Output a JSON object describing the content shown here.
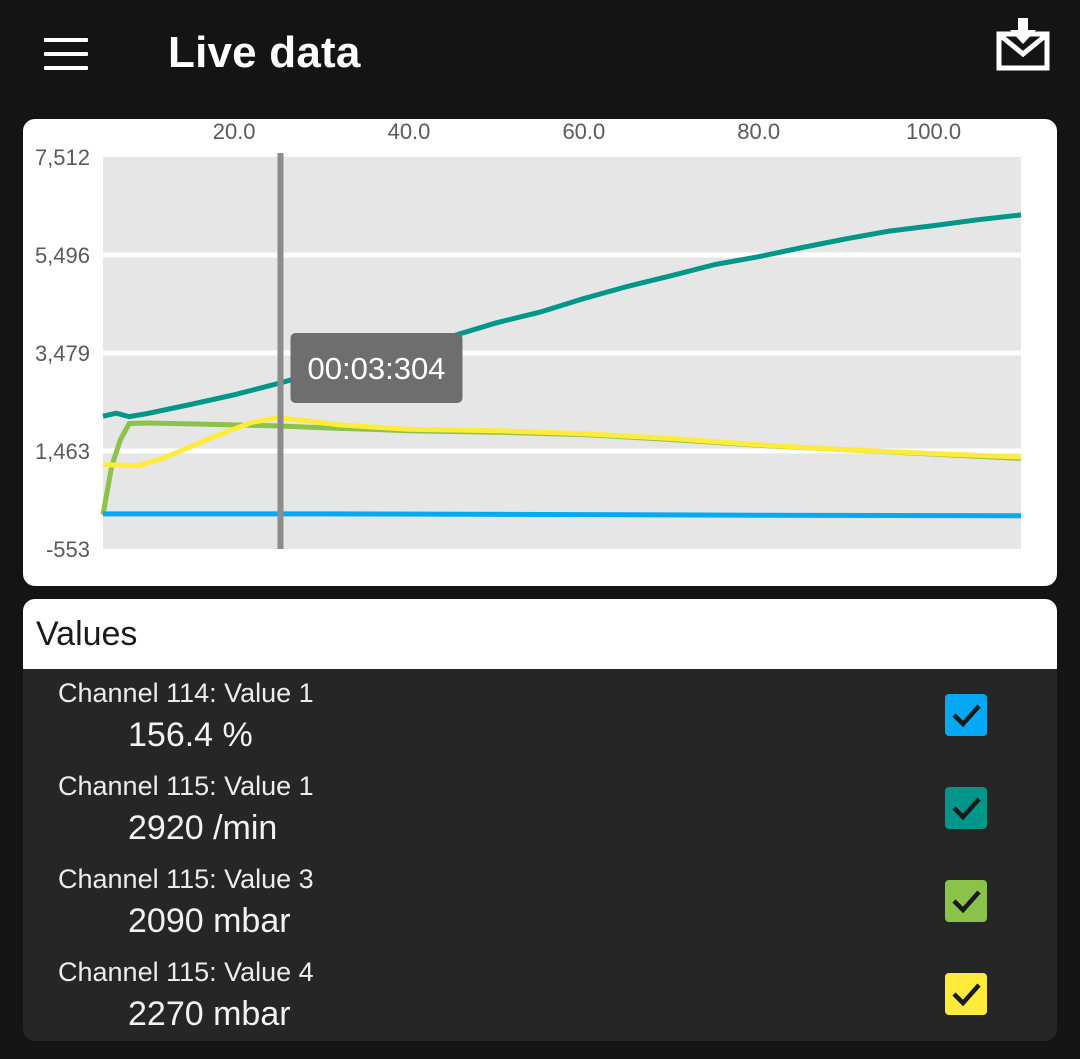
{
  "header": {
    "title": "Live data",
    "menu_icon": "hamburger-menu-icon",
    "export_icon": "download-mail-icon"
  },
  "tooltip": {
    "label": "00:03:304"
  },
  "chart_data": {
    "type": "line",
    "x_ticks": [
      "20.0",
      "40.0",
      "60.0",
      "80.0",
      "100.0"
    ],
    "y_ticks": [
      "7,512",
      "5,496",
      "3,479",
      "1,463",
      "-553"
    ],
    "xlim": [
      5,
      110
    ],
    "ylim": [
      -553,
      7512
    ],
    "cursor_x": 25.3,
    "grid": true,
    "series": [
      {
        "color": "#00968a",
        "x": [
          5,
          6.5,
          8,
          10,
          15,
          20,
          25,
          30,
          35,
          40,
          45,
          50,
          55,
          60,
          65,
          70,
          75,
          80,
          85,
          90,
          95,
          100,
          105,
          110
        ],
        "values": [
          2180,
          2240,
          2170,
          2230,
          2420,
          2620,
          2850,
          3100,
          3330,
          3570,
          3830,
          4100,
          4320,
          4600,
          4850,
          5070,
          5300,
          5460,
          5650,
          5830,
          5990,
          6100,
          6220,
          6320
        ]
      },
      {
        "color": "#8bc34a",
        "x": [
          5,
          6,
          7,
          8,
          10,
          15,
          20,
          25,
          30,
          40,
          50,
          60,
          70,
          80,
          90,
          100,
          110
        ],
        "values": [
          150,
          1150,
          1700,
          2030,
          2040,
          2020,
          2000,
          1980,
          1940,
          1880,
          1850,
          1800,
          1700,
          1580,
          1490,
          1400,
          1310
        ]
      },
      {
        "color": "#ffeb3b",
        "x": [
          5,
          7,
          9,
          12,
          15,
          18,
          22,
          25,
          28,
          32,
          40,
          50,
          60,
          70,
          80,
          90,
          100,
          110
        ],
        "values": [
          1180,
          1170,
          1160,
          1320,
          1550,
          1780,
          2050,
          2150,
          2090,
          2000,
          1910,
          1880,
          1820,
          1720,
          1590,
          1490,
          1410,
          1340
        ]
      },
      {
        "color": "#03a9f4",
        "x": [
          5,
          30,
          60,
          80,
          110
        ],
        "values": [
          170,
          170,
          155,
          140,
          130
        ]
      }
    ]
  },
  "values": {
    "header": "Values",
    "rows": [
      {
        "name": "Channel 114: Value 1",
        "value": "156.4 %",
        "color": "#03a9f4",
        "checked": true
      },
      {
        "name": "Channel 115: Value 1",
        "value": "2920 /min",
        "color": "#00968a",
        "checked": true
      },
      {
        "name": "Channel 115: Value 3",
        "value": "2090 mbar",
        "color": "#8bc34a",
        "checked": true
      },
      {
        "name": "Channel 115: Value 4",
        "value": "2270 mbar",
        "color": "#ffeb3b",
        "checked": true
      }
    ]
  }
}
